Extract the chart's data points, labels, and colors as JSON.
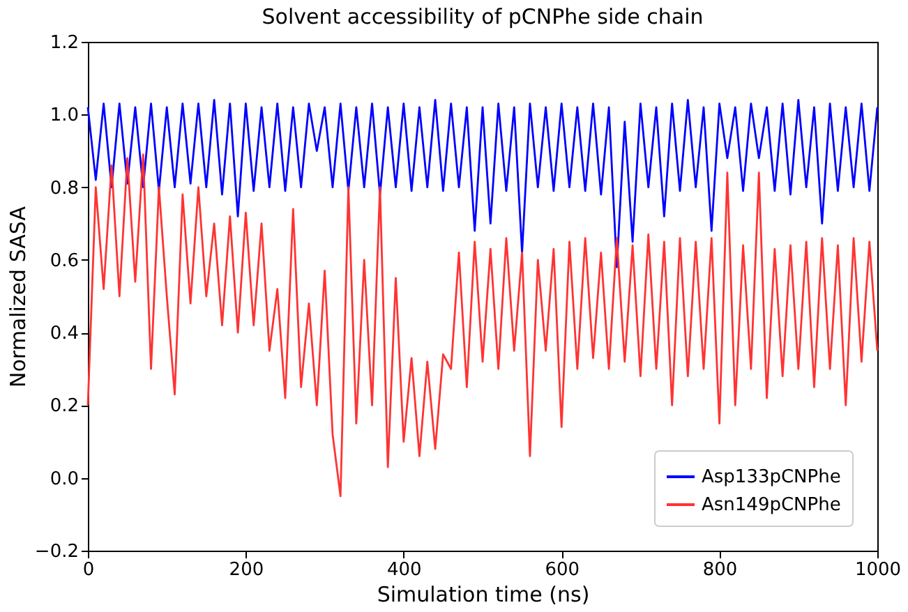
{
  "chart_data": {
    "type": "line",
    "title": "Solvent accessibility of pCNPhe side chain",
    "xlabel": "Simulation time (ns)",
    "ylabel": "Normalized SASA",
    "x": [
      0,
      10,
      20,
      30,
      40,
      50,
      60,
      70,
      80,
      90,
      100,
      110,
      120,
      130,
      140,
      150,
      160,
      170,
      180,
      190,
      200,
      210,
      220,
      230,
      240,
      250,
      260,
      270,
      280,
      290,
      300,
      310,
      320,
      330,
      340,
      350,
      360,
      370,
      380,
      390,
      400,
      410,
      420,
      430,
      440,
      450,
      460,
      470,
      480,
      490,
      500,
      510,
      520,
      530,
      540,
      550,
      560,
      570,
      580,
      590,
      600,
      610,
      620,
      630,
      640,
      650,
      660,
      670,
      680,
      690,
      700,
      710,
      720,
      730,
      740,
      750,
      760,
      770,
      780,
      790,
      800,
      810,
      820,
      830,
      840,
      850,
      860,
      870,
      880,
      890,
      900,
      910,
      920,
      930,
      940,
      950,
      960,
      970,
      980,
      990,
      1000
    ],
    "series": [
      {
        "name": "Asp133pCNPhe",
        "color": "#0000ff",
        "values": [
          1.02,
          0.82,
          1.03,
          0.8,
          1.03,
          0.81,
          1.02,
          0.8,
          1.03,
          0.79,
          1.02,
          0.8,
          1.03,
          0.81,
          1.03,
          0.8,
          1.04,
          0.78,
          1.03,
          0.72,
          1.03,
          0.79,
          1.02,
          0.8,
          1.03,
          0.79,
          1.02,
          0.8,
          1.03,
          0.9,
          1.02,
          0.8,
          1.03,
          0.79,
          1.02,
          0.8,
          1.03,
          0.78,
          1.02,
          0.8,
          1.03,
          0.79,
          1.02,
          0.8,
          1.04,
          0.79,
          1.03,
          0.8,
          1.02,
          0.68,
          1.02,
          0.7,
          1.03,
          0.79,
          1.02,
          0.62,
          1.03,
          0.8,
          1.02,
          0.79,
          1.03,
          0.8,
          1.02,
          0.79,
          1.03,
          0.78,
          1.02,
          0.58,
          0.98,
          0.65,
          1.03,
          0.8,
          1.02,
          0.72,
          1.03,
          0.79,
          1.04,
          0.8,
          1.02,
          0.68,
          1.03,
          0.88,
          1.02,
          0.79,
          1.03,
          0.88,
          1.02,
          0.79,
          1.03,
          0.78,
          1.04,
          0.8,
          1.02,
          0.7,
          1.03,
          0.79,
          1.02,
          0.8,
          1.03,
          0.79,
          1.02
        ]
      },
      {
        "name": "Asn149pCNPhe",
        "color": "#ff3333",
        "values": [
          0.2,
          0.8,
          0.52,
          0.86,
          0.5,
          0.88,
          0.54,
          0.89,
          0.3,
          0.8,
          0.5,
          0.23,
          0.78,
          0.48,
          0.8,
          0.5,
          0.7,
          0.42,
          0.72,
          0.4,
          0.73,
          0.42,
          0.7,
          0.35,
          0.52,
          0.22,
          0.74,
          0.25,
          0.48,
          0.2,
          0.57,
          0.12,
          -0.05,
          0.8,
          0.15,
          0.6,
          0.2,
          0.8,
          0.03,
          0.55,
          0.1,
          0.33,
          0.06,
          0.32,
          0.08,
          0.34,
          0.3,
          0.62,
          0.25,
          0.65,
          0.32,
          0.63,
          0.3,
          0.66,
          0.35,
          0.62,
          0.06,
          0.6,
          0.35,
          0.63,
          0.14,
          0.65,
          0.3,
          0.66,
          0.33,
          0.62,
          0.3,
          0.66,
          0.32,
          0.64,
          0.28,
          0.67,
          0.3,
          0.65,
          0.2,
          0.66,
          0.28,
          0.65,
          0.3,
          0.66,
          0.15,
          0.84,
          0.2,
          0.64,
          0.3,
          0.84,
          0.22,
          0.63,
          0.28,
          0.64,
          0.3,
          0.65,
          0.25,
          0.66,
          0.3,
          0.64,
          0.2,
          0.66,
          0.32,
          0.65,
          0.35
        ]
      }
    ],
    "xlim": [
      0,
      1000
    ],
    "xticks": [
      0,
      200,
      400,
      600,
      800,
      1000
    ],
    "ylim": [
      -0.2,
      1.2
    ],
    "yticks": [
      {
        "value": -0.2,
        "label": "−0.2"
      },
      {
        "value": 0,
        "label": "0.0"
      },
      {
        "value": 0.2,
        "label": "0.2"
      },
      {
        "value": 0.4,
        "label": "0.4"
      },
      {
        "value": 0.6,
        "label": "0.6"
      },
      {
        "value": 0.8,
        "label": "0.8"
      },
      {
        "value": 1.0,
        "label": "1.0"
      },
      {
        "value": 1.2,
        "label": "1.2"
      }
    ],
    "grid": false,
    "legend": "bottom right",
    "marker": "none",
    "line_style": "solid"
  }
}
